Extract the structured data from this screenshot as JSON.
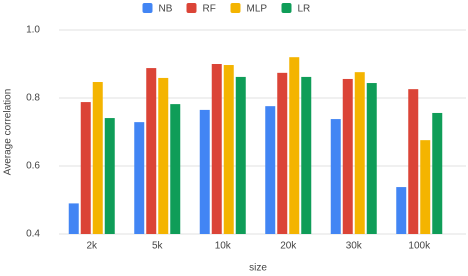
{
  "chart_data": {
    "type": "bar",
    "x_label": "size",
    "y_label": "Average correlation",
    "categories": [
      "2k",
      "5k",
      "10k",
      "20k",
      "30k",
      "100k"
    ],
    "series": [
      {
        "name": "NB",
        "color": "#4285f4",
        "values": [
          0.49,
          0.729,
          0.765,
          0.776,
          0.738,
          0.538
        ]
      },
      {
        "name": "RF",
        "color": "#db4437",
        "values": [
          0.788,
          0.888,
          0.9,
          0.874,
          0.856,
          0.826
        ]
      },
      {
        "name": "MLP",
        "color": "#f4b400",
        "values": [
          0.847,
          0.859,
          0.897,
          0.92,
          0.876,
          0.676
        ]
      },
      {
        "name": "LR",
        "color": "#0f9d58",
        "values": [
          0.741,
          0.782,
          0.862,
          0.862,
          0.844,
          0.756
        ]
      }
    ],
    "ylim": [
      0.4,
      1
    ],
    "yticks": [
      0.4,
      0.6,
      0.8,
      {
        "value": 1,
        "label": "1.0"
      }
    ],
    "grid": true,
    "legend": "top"
  }
}
